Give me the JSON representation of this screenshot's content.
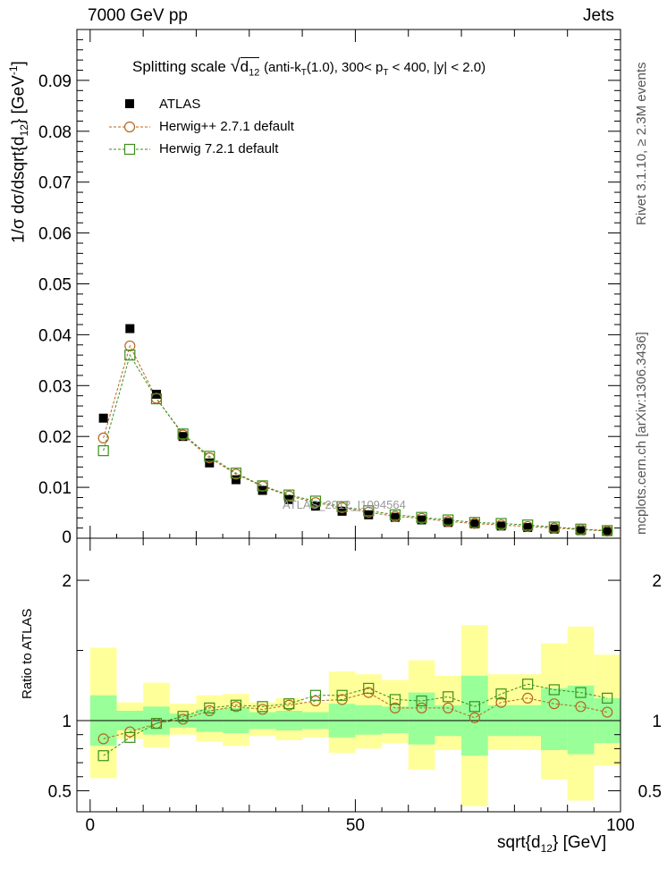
{
  "header": {
    "left": "7000 GeV pp",
    "right": "Jets",
    "side_top": "Rivet 3.1.10, ≥ 2.3M events",
    "side_bottom": "mcplots.cern.ch [arXiv:1306.3436]",
    "watermark": "ATLAS_2012_I1094564"
  },
  "colors": {
    "data": "#000000",
    "herwigpp": "#b5651d",
    "herwig7": "#3a8f1a",
    "band_inner": "#99ff99",
    "band_outer": "#ffff99"
  },
  "chart_data": [
    {
      "type": "scatter",
      "title": "Splitting scale √d12 (anti-kT(1.0), 300< pT < 400, |y| < 2.0)",
      "ylabel": "1/σ dσ/dsqrt{d12} [GeV^-1]",
      "xlim": [
        -2.5,
        100
      ],
      "ylim": [
        0,
        0.1
      ],
      "x": [
        2.5,
        7.5,
        12.5,
        17.5,
        22.5,
        27.5,
        32.5,
        37.5,
        42.5,
        47.5,
        52.5,
        57.5,
        62.5,
        67.5,
        72.5,
        77.5,
        82.5,
        87.5,
        92.5,
        97.5
      ],
      "yticks": [
        0.01,
        0.02,
        0.03,
        0.04,
        0.05,
        0.06,
        0.07,
        0.08,
        0.09
      ],
      "legend": [
        "ATLAS",
        "Herwig++ 2.7.1 default",
        "Herwig 7.2.1 default"
      ],
      "series": [
        {
          "name": "ATLAS",
          "values": [
            0.0236,
            0.0412,
            0.0283,
            0.02,
            0.0148,
            0.0115,
            0.0094,
            0.0076,
            0.0063,
            0.0053,
            0.0046,
            0.0041,
            0.0036,
            0.0031,
            0.0028,
            0.0024,
            0.0021,
            0.0018,
            0.0015,
            0.0013
          ]
        },
        {
          "name": "Herwig++ 2.7.1 default",
          "values": [
            0.0197,
            0.0378,
            0.0275,
            0.0203,
            0.0158,
            0.0126,
            0.0102,
            0.0083,
            0.007,
            0.006,
            0.0051,
            0.0043,
            0.0039,
            0.0033,
            0.0029,
            0.0026,
            0.0023,
            0.002,
            0.0017,
            0.0014
          ]
        },
        {
          "name": "Herwig 7.2.1 default",
          "values": [
            0.0172,
            0.036,
            0.0274,
            0.0205,
            0.0161,
            0.0128,
            0.0103,
            0.0085,
            0.0073,
            0.0062,
            0.0054,
            0.0046,
            0.0041,
            0.0036,
            0.0031,
            0.0029,
            0.0026,
            0.0022,
            0.0018,
            0.0015
          ]
        }
      ]
    },
    {
      "type": "scatter",
      "ylabel": "Ratio to ATLAS",
      "xlabel": "sqrt{d12} [GeV]",
      "xlim": [
        -2.5,
        100
      ],
      "ylim": [
        0.35,
        2.3
      ],
      "xticks": [
        0,
        50,
        100
      ],
      "yticks": [
        0.5,
        1,
        2
      ],
      "x": [
        2.5,
        7.5,
        12.5,
        17.5,
        22.5,
        27.5,
        32.5,
        37.5,
        42.5,
        47.5,
        52.5,
        57.5,
        62.5,
        67.5,
        72.5,
        77.5,
        82.5,
        87.5,
        92.5,
        97.5
      ],
      "band_outer": [
        [
          0.59,
          1.52
        ],
        [
          0.87,
          1.13
        ],
        [
          0.81,
          1.27
        ],
        [
          0.9,
          1.12
        ],
        [
          0.85,
          1.18
        ],
        [
          0.82,
          1.19
        ],
        [
          0.89,
          1.13
        ],
        [
          0.86,
          1.16
        ],
        [
          0.88,
          1.13
        ],
        [
          0.77,
          1.35
        ],
        [
          0.8,
          1.33
        ],
        [
          0.84,
          1.29
        ],
        [
          0.65,
          1.43
        ],
        [
          0.79,
          1.32
        ],
        [
          0.39,
          1.68
        ],
        [
          0.79,
          1.33
        ],
        [
          0.79,
          1.33
        ],
        [
          0.58,
          1.55
        ],
        [
          0.43,
          1.67
        ],
        [
          0.68,
          1.47
        ]
      ],
      "band_inner": [
        [
          0.82,
          1.18
        ],
        [
          0.93,
          1.07
        ],
        [
          0.9,
          1.1
        ],
        [
          0.95,
          1.05
        ],
        [
          0.92,
          1.08
        ],
        [
          0.91,
          1.09
        ],
        [
          0.94,
          1.06
        ],
        [
          0.93,
          1.07
        ],
        [
          0.94,
          1.06
        ],
        [
          0.88,
          1.12
        ],
        [
          0.9,
          1.11
        ],
        [
          0.91,
          1.1
        ],
        [
          0.83,
          1.2
        ],
        [
          0.89,
          1.11
        ],
        [
          0.75,
          1.32
        ],
        [
          0.89,
          1.11
        ],
        [
          0.89,
          1.11
        ],
        [
          0.79,
          1.23
        ],
        [
          0.76,
          1.25
        ],
        [
          0.84,
          1.16
        ]
      ],
      "series": [
        {
          "name": "Herwig++ 2.7.1 default",
          "values": [
            0.87,
            0.92,
            0.98,
            1.01,
            1.07,
            1.1,
            1.08,
            1.11,
            1.14,
            1.15,
            1.2,
            1.09,
            1.09,
            1.09,
            1.02,
            1.13,
            1.16,
            1.12,
            1.1,
            1.06
          ]
        },
        {
          "name": "Herwig 7.2.1 default",
          "values": [
            0.75,
            0.88,
            0.98,
            1.03,
            1.09,
            1.11,
            1.1,
            1.12,
            1.18,
            1.18,
            1.23,
            1.15,
            1.14,
            1.17,
            1.1,
            1.19,
            1.26,
            1.22,
            1.2,
            1.16
          ]
        }
      ]
    }
  ]
}
